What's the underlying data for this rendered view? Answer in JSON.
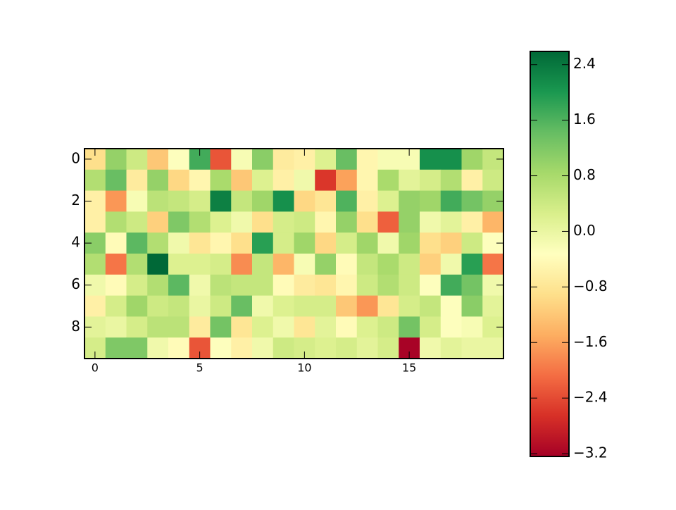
{
  "chart_data": {
    "type": "heatmap",
    "colormap": "RdYlGn",
    "xlim": [
      -0.5,
      19.5
    ],
    "ylim": [
      9.5,
      -0.5
    ],
    "xticks": [
      0,
      5,
      10,
      15
    ],
    "yticks": [
      0,
      2,
      4,
      6,
      8
    ],
    "values": [
      [
        -0.9,
        1.0,
        0.4,
        -1.2,
        -0.3,
        1.7,
        -2.3,
        -0.2,
        1.1,
        -0.7,
        -0.6,
        0.2,
        1.4,
        -0.5,
        -0.2,
        -0.2,
        2.1,
        2.1,
        0.9,
        0.5
      ],
      [
        0.7,
        1.4,
        -0.7,
        1.0,
        -1.0,
        -0.5,
        0.8,
        -1.2,
        0.2,
        -0.6,
        -0.1,
        -2.6,
        -1.6,
        -0.5,
        0.8,
        0.1,
        0.3,
        0.7,
        -0.6,
        0.4
      ],
      [
        -0.6,
        -1.7,
        -0.2,
        0.6,
        0.5,
        0.3,
        2.3,
        0.5,
        0.9,
        2.1,
        -1.0,
        -0.8,
        1.6,
        -0.6,
        0.2,
        1.0,
        0.9,
        1.7,
        1.3,
        1.0
      ],
      [
        -0.6,
        0.7,
        0.4,
        -1.1,
        1.2,
        0.7,
        0.2,
        -0.1,
        -0.9,
        0.3,
        0.4,
        -0.5,
        1.0,
        -0.9,
        -2.2,
        1.0,
        -0.1,
        0.1,
        -0.6,
        -1.4
      ],
      [
        1.1,
        -0.4,
        1.5,
        0.7,
        -0.1,
        -0.8,
        -0.5,
        -0.9,
        1.9,
        0.3,
        0.9,
        -1.0,
        0.3,
        0.9,
        -0.1,
        0.9,
        -0.9,
        -1.1,
        0.4,
        -0.3
      ],
      [
        0.7,
        -2.0,
        0.7,
        2.6,
        0.2,
        0.2,
        0.3,
        -1.8,
        0.5,
        -1.4,
        -0.2,
        1.0,
        -0.4,
        0.5,
        0.8,
        0.4,
        -1.1,
        -0.1,
        1.9,
        -2.0
      ],
      [
        -0.1,
        -0.4,
        0.3,
        0.7,
        1.5,
        -0.1,
        0.6,
        0.5,
        0.5,
        -0.4,
        -0.7,
        -0.8,
        -0.5,
        0.4,
        0.7,
        0.4,
        -0.3,
        1.7,
        1.3,
        -0.1
      ],
      [
        -0.6,
        0.3,
        0.9,
        0.4,
        0.5,
        0.0,
        0.4,
        1.4,
        -0.1,
        0.2,
        0.3,
        0.3,
        -1.2,
        -1.7,
        -0.8,
        0.3,
        0.5,
        -0.3,
        1.1,
        0.1
      ],
      [
        0.1,
        0.0,
        0.3,
        0.6,
        0.6,
        -0.7,
        1.3,
        -0.8,
        0.2,
        -0.1,
        -0.8,
        0.1,
        -0.4,
        0.2,
        0.4,
        1.3,
        0.3,
        -0.3,
        -0.2,
        0.2
      ],
      [
        0.3,
        1.2,
        1.2,
        -0.1,
        -0.4,
        -2.3,
        -0.3,
        -0.6,
        -0.1,
        0.4,
        0.3,
        0.2,
        0.3,
        0.1,
        0.3,
        -3.2,
        -0.1,
        0.1,
        0.0,
        0.0
      ]
    ],
    "colorbar": {
      "lim": [
        -3.24,
        2.59
      ],
      "ticks": [
        {
          "value": -3.2,
          "label": "−3.2"
        },
        {
          "value": -2.4,
          "label": "−2.4"
        },
        {
          "value": -1.6,
          "label": "−1.6"
        },
        {
          "value": -0.8,
          "label": "−0.8"
        },
        {
          "value": 0,
          "label": "0.0"
        },
        0.8,
        1.6,
        2.4
      ]
    }
  }
}
